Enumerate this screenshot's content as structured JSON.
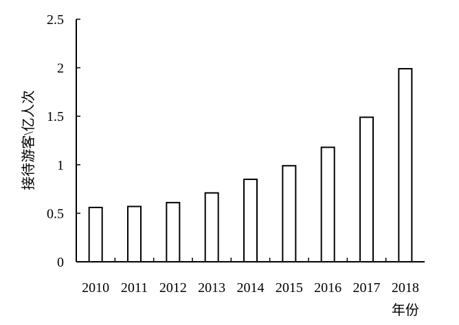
{
  "chart_data": {
    "type": "bar",
    "categories": [
      "2010",
      "2011",
      "2012",
      "2013",
      "2014",
      "2015",
      "2016",
      "2017",
      "2018"
    ],
    "values": [
      0.56,
      0.57,
      0.61,
      0.71,
      0.85,
      0.99,
      1.18,
      1.49,
      1.99
    ],
    "ylabel": "接待游客\\亿人次",
    "xlabel": "年份",
    "ylim": [
      0,
      2.5
    ],
    "yticks": [
      0,
      0.5,
      1,
      1.5,
      2,
      2.5
    ],
    "ytick_labels": [
      "0",
      "0.5",
      "1",
      "1.5",
      "2",
      "2.5"
    ],
    "grid": false,
    "bar_fill": "#ffffff",
    "bar_stroke": "#000000"
  }
}
